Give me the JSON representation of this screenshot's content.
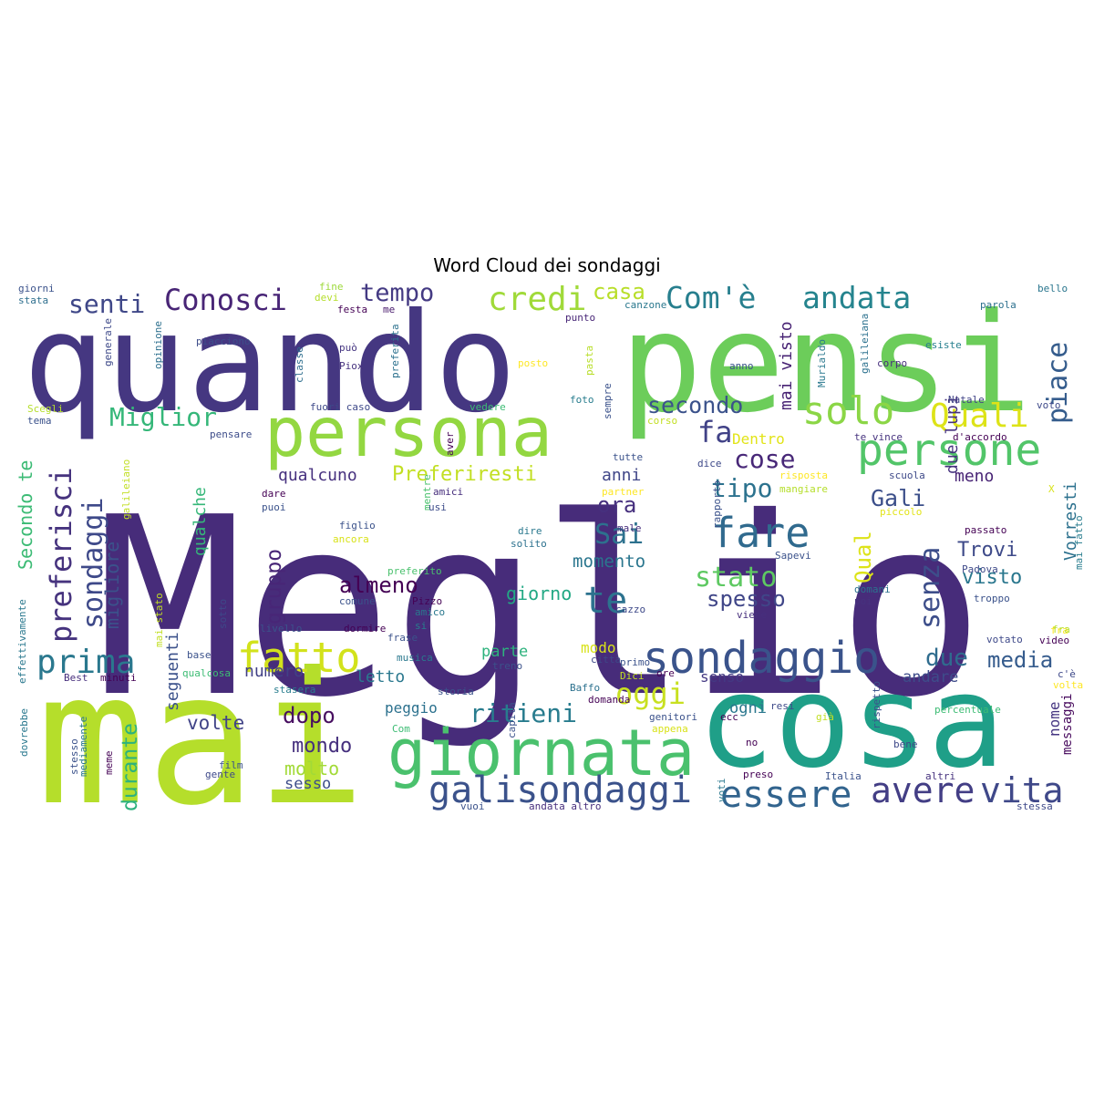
{
  "chart_data": {
    "type": "wordcloud",
    "title": "Word Cloud dei sondaggi",
    "palette": "viridis",
    "background": "#ffffff",
    "words": [
      {
        "text": "Meglio",
        "color": "#472c7a"
      },
      {
        "text": "quando",
        "color": "#453781"
      },
      {
        "text": "pensi",
        "color": "#6ccd5a"
      },
      {
        "text": "mai",
        "color": "#b5de2b"
      },
      {
        "text": "cosa",
        "color": "#1f9f88"
      },
      {
        "text": "persona",
        "color": "#93d741"
      },
      {
        "text": "giornata",
        "color": "#4ac16d"
      },
      {
        "text": "sondaggio",
        "color": "#3a538b"
      },
      {
        "text": "persone",
        "color": "#52c569"
      },
      {
        "text": "fatto",
        "color": "#d2e21b"
      },
      {
        "text": "fare",
        "color": "#306a8e"
      },
      {
        "text": "essere",
        "color": "#32648e"
      },
      {
        "text": "avere",
        "color": "#433e85"
      },
      {
        "text": "vita",
        "color": "#3f4889"
      },
      {
        "text": "galisondaggi",
        "color": "#3b528b"
      },
      {
        "text": "prima",
        "color": "#2a788e"
      },
      {
        "text": "solo",
        "color": "#8bd646"
      },
      {
        "text": "Quali",
        "color": "#dde318"
      },
      {
        "text": "credi",
        "color": "#a0da39"
      },
      {
        "text": "Com'è",
        "color": "#277f8e"
      },
      {
        "text": "andata",
        "color": "#25848e"
      },
      {
        "text": "Conosci",
        "color": "#482576"
      },
      {
        "text": "senti",
        "color": "#3f4788"
      },
      {
        "text": "tempo",
        "color": "#443a83"
      },
      {
        "text": "casa",
        "color": "#b8de29"
      },
      {
        "text": "Miglior",
        "color": "#35b779"
      },
      {
        "text": "preferisci",
        "color": "#46337e"
      },
      {
        "text": "sondaggi",
        "color": "#3e4989"
      },
      {
        "text": "te",
        "color": "#2c728e"
      },
      {
        "text": "Sai",
        "color": "#2d718e"
      },
      {
        "text": "stato",
        "color": "#5ec962"
      },
      {
        "text": "senza",
        "color": "#3d4e8a"
      },
      {
        "text": "piace",
        "color": "#365d8d"
      },
      {
        "text": "fa",
        "color": "#414287"
      },
      {
        "text": "cose",
        "color": "#482878"
      },
      {
        "text": "secondo",
        "color": "#3b528b"
      },
      {
        "text": "Preferiresti",
        "color": "#c2df23"
      },
      {
        "text": "qualcuno",
        "color": "#46307e"
      },
      {
        "text": "Gali",
        "color": "#3c4f8a"
      },
      {
        "text": "tipo",
        "color": "#2c728e"
      },
      {
        "text": "almeno",
        "color": "#440154"
      },
      {
        "text": "spesso",
        "color": "#404688"
      },
      {
        "text": "due",
        "color": "#2f6c8e"
      },
      {
        "text": "media",
        "color": "#365c8d"
      },
      {
        "text": "ritieni",
        "color": "#287c8e"
      },
      {
        "text": "oggi",
        "color": "#c8e020"
      },
      {
        "text": "dopo",
        "color": "#470d60"
      },
      {
        "text": "mondo",
        "color": "#46307e"
      },
      {
        "text": "molto",
        "color": "#a2da37"
      },
      {
        "text": "sesso",
        "color": "#3d4d8a"
      },
      {
        "text": "volte",
        "color": "#414487"
      },
      {
        "text": "durante",
        "color": "#2db27d"
      },
      {
        "text": "migliore",
        "color": "#3b528b"
      },
      {
        "text": "gruppo",
        "color": "#482677"
      },
      {
        "text": "qualche",
        "color": "#35b779"
      },
      {
        "text": "Secondo te",
        "color": "#3cbb75"
      },
      {
        "text": "ora",
        "color": "#46307e"
      },
      {
        "text": "momento",
        "color": "#2a768e"
      },
      {
        "text": "anni",
        "color": "#404688"
      },
      {
        "text": "giorno",
        "color": "#22a884"
      },
      {
        "text": "Qual",
        "color": "#dde318"
      },
      {
        "text": "Trovi",
        "color": "#3e4a89"
      },
      {
        "text": "visto",
        "color": "#2a778e"
      },
      {
        "text": "meno",
        "color": "#482475"
      },
      {
        "text": "Vorresti",
        "color": "#2c718e"
      },
      {
        "text": "mai visto",
        "color": "#482374"
      },
      {
        "text": "due lupi",
        "color": "#46327e"
      },
      {
        "text": "Dentro",
        "color": "#e2e418"
      },
      {
        "text": "seguenti",
        "color": "#3b518b"
      },
      {
        "text": "numero",
        "color": "#424186"
      },
      {
        "text": "letto",
        "color": "#2a788e"
      },
      {
        "text": "peggio",
        "color": "#2c718e"
      },
      {
        "text": "parte",
        "color": "#2db27d"
      },
      {
        "text": "modo",
        "color": "#d8e219"
      },
      {
        "text": "senso",
        "color": "#443983"
      },
      {
        "text": "andare",
        "color": "#3e4c8a"
      },
      {
        "text": "ogni",
        "color": "#2a778e"
      },
      {
        "text": "nome",
        "color": "#453581"
      },
      {
        "text": "messaggi",
        "color": "#46085c"
      },
      {
        "text": "giorni",
        "color": "#3b528b"
      },
      {
        "text": "stata",
        "color": "#2e6f8e"
      },
      {
        "text": "fine",
        "color": "#9dd93b"
      },
      {
        "text": "devi",
        "color": "#b5de2b"
      },
      {
        "text": "festa",
        "color": "#440154"
      },
      {
        "text": "me",
        "color": "#481a6c"
      },
      {
        "text": "canzone",
        "color": "#2a788e"
      },
      {
        "text": "punto",
        "color": "#482677"
      },
      {
        "text": "parola",
        "color": "#2d708e"
      },
      {
        "text": "bello",
        "color": "#2a768e"
      },
      {
        "text": "opinione",
        "color": "#2d708e"
      },
      {
        "text": "generale",
        "color": "#3e4989"
      },
      {
        "text": "piacciono",
        "color": "#3d4d8a"
      },
      {
        "text": "può",
        "color": "#453581"
      },
      {
        "text": "classe",
        "color": "#2e6e8e"
      },
      {
        "text": "Piox",
        "color": "#46327e"
      },
      {
        "text": "preferita",
        "color": "#2c718e"
      },
      {
        "text": "posto",
        "color": "#fde725"
      },
      {
        "text": "pasta",
        "color": "#b8de29"
      },
      {
        "text": "anno",
        "color": "#3b528b"
      },
      {
        "text": "Murialdo",
        "color": "#2a788e"
      },
      {
        "text": "corpo",
        "color": "#472f7d"
      },
      {
        "text": "galileiana",
        "color": "#2c718e"
      },
      {
        "text": "esiste",
        "color": "#277f8e"
      },
      {
        "text": "Scegli",
        "color": "#b5de2b"
      },
      {
        "text": "tema",
        "color": "#3b528b"
      },
      {
        "text": "fuori caso",
        "color": "#3e4989"
      },
      {
        "text": "pensare",
        "color": "#3d4d8a"
      },
      {
        "text": "vedere",
        "color": "#3dbc74"
      },
      {
        "text": "foto",
        "color": "#287d8e"
      },
      {
        "text": "sempre",
        "color": "#3b528b"
      },
      {
        "text": "corso",
        "color": "#c2df23"
      },
      {
        "text": "aver",
        "color": "#440154"
      },
      {
        "text": "Natale",
        "color": "#414487"
      },
      {
        "text": "voto",
        "color": "#3e4989"
      },
      {
        "text": "te vince",
        "color": "#46337e"
      },
      {
        "text": "d'accordo",
        "color": "#440154"
      },
      {
        "text": "scuola",
        "color": "#3e4989"
      },
      {
        "text": "tutte",
        "color": "#3b528b"
      },
      {
        "text": "dice",
        "color": "#3e4989"
      },
      {
        "text": "risposta",
        "color": "#fde725"
      },
      {
        "text": "galileiano",
        "color": "#c2df23"
      },
      {
        "text": "dare",
        "color": "#440154"
      },
      {
        "text": "puoi",
        "color": "#3b528b"
      },
      {
        "text": "mentre",
        "color": "#4ac16d"
      },
      {
        "text": "amici",
        "color": "#472f7d"
      },
      {
        "text": "usi",
        "color": "#3d4d8a"
      },
      {
        "text": "partner",
        "color": "#fde725"
      },
      {
        "text": "rapporto",
        "color": "#3b528b"
      },
      {
        "text": "mangiare",
        "color": "#b5de2b"
      },
      {
        "text": "piccolo",
        "color": "#e2e418"
      },
      {
        "text": "X",
        "color": "#d8e219"
      },
      {
        "text": "figlio",
        "color": "#3b528b"
      },
      {
        "text": "male",
        "color": "#472f7d"
      },
      {
        "text": "dire",
        "color": "#2a788e"
      },
      {
        "text": "ancora",
        "color": "#d8e219"
      },
      {
        "text": "solito",
        "color": "#2c718e"
      },
      {
        "text": "passato",
        "color": "#440154"
      },
      {
        "text": "Sapevi",
        "color": "#3b528b"
      },
      {
        "text": "Padova",
        "color": "#3e4989"
      },
      {
        "text": "preferito",
        "color": "#4ac16d"
      },
      {
        "text": "comune",
        "color": "#3b528b"
      },
      {
        "text": "Pizzo",
        "color": "#440154"
      },
      {
        "text": "amico",
        "color": "#2a788e"
      },
      {
        "text": "cazzo",
        "color": "#3e4989"
      },
      {
        "text": "domani",
        "color": "#2c718e"
      },
      {
        "text": "poi",
        "color": "#46327e"
      },
      {
        "text": "troppo",
        "color": "#3b528b"
      },
      {
        "text": "mai fatto",
        "color": "#287d8e"
      },
      {
        "text": "effettivamente",
        "color": "#2a788e"
      },
      {
        "text": "mai stato",
        "color": "#c2df23"
      },
      {
        "text": "sotto",
        "color": "#3e4989"
      },
      {
        "text": "dormire",
        "color": "#440154"
      },
      {
        "text": "livello",
        "color": "#3b528b"
      },
      {
        "text": "si",
        "color": "#287d8e"
      },
      {
        "text": "frase",
        "color": "#3b528b"
      },
      {
        "text": "viene",
        "color": "#472f7d"
      },
      {
        "text": "votato",
        "color": "#3e4989"
      },
      {
        "text": "fra",
        "color": "#fde725"
      },
      {
        "text": "video",
        "color": "#440154"
      },
      {
        "text": "base",
        "color": "#3b528b"
      },
      {
        "text": "musica",
        "color": "#2a788e"
      },
      {
        "text": "città",
        "color": "#3e4989"
      },
      {
        "text": "qualcosa",
        "color": "#3dbc74"
      },
      {
        "text": "treno",
        "color": "#3b528b"
      },
      {
        "text": "Best",
        "color": "#472f7d"
      },
      {
        "text": "minuti",
        "color": "#440154"
      },
      {
        "text": "Dici",
        "color": "#c2df23"
      },
      {
        "text": "Baffo",
        "color": "#2c718e"
      },
      {
        "text": "stasera",
        "color": "#287d8e"
      },
      {
        "text": "storia",
        "color": "#3b528b"
      },
      {
        "text": "domanda",
        "color": "#440154"
      },
      {
        "text": "c'è",
        "color": "#3e4989"
      },
      {
        "text": "volta",
        "color": "#fde725"
      },
      {
        "text": "dovrebbe",
        "color": "#2a788e"
      },
      {
        "text": "rispetto",
        "color": "#3b528b"
      },
      {
        "text": "resi",
        "color": "#3e4989"
      },
      {
        "text": "ecc",
        "color": "#440154"
      },
      {
        "text": "genitori",
        "color": "#3b528b"
      },
      {
        "text": "appena",
        "color": "#d8e219"
      },
      {
        "text": "percentuale",
        "color": "#3dbc74"
      },
      {
        "text": "capita",
        "color": "#3b528b"
      },
      {
        "text": "già",
        "color": "#c2df23"
      },
      {
        "text": "no",
        "color": "#440154"
      },
      {
        "text": "bene",
        "color": "#3e4989"
      },
      {
        "text": "Com",
        "color": "#3dbc74"
      },
      {
        "text": "stesso",
        "color": "#3b528b"
      },
      {
        "text": "mediamente",
        "color": "#2a788e"
      },
      {
        "text": "meme",
        "color": "#440154"
      },
      {
        "text": "film",
        "color": "#3b528b"
      },
      {
        "text": "gente",
        "color": "#3e4989"
      },
      {
        "text": "preso",
        "color": "#440154"
      },
      {
        "text": "Italia",
        "color": "#3b528b"
      },
      {
        "text": "altri",
        "color": "#46327e"
      },
      {
        "text": "voti",
        "color": "#2a788e"
      },
      {
        "text": "vuoi",
        "color": "#3b528b"
      },
      {
        "text": "andata altro",
        "color": "#472f7d"
      },
      {
        "text": "stessa",
        "color": "#3e4989"
      },
      {
        "text": "ore",
        "color": "#440154"
      },
      {
        "text": "primo",
        "color": "#3b528b"
      },
      {
        "text": "fra",
        "color": "#b5de2b"
      }
    ]
  }
}
